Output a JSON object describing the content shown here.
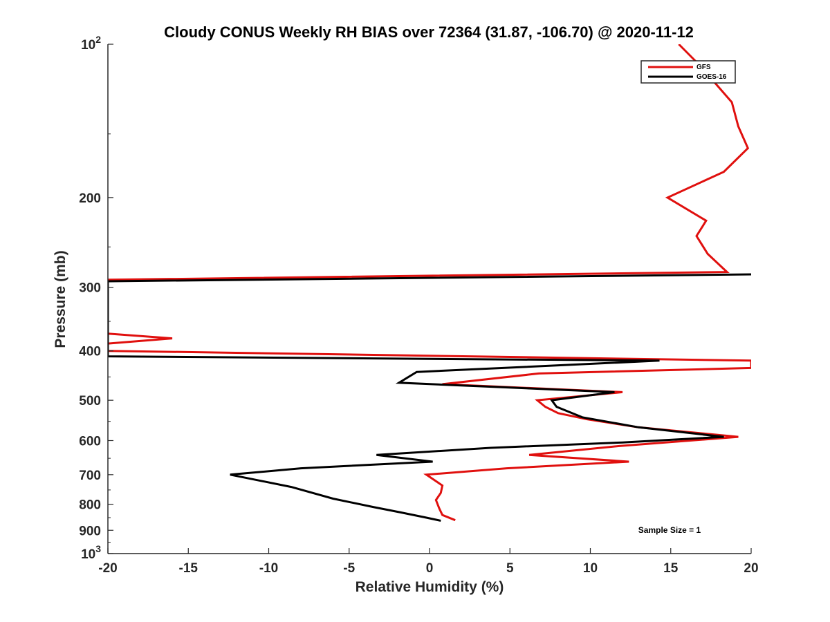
{
  "chart_data": {
    "type": "line",
    "title": "Cloudy CONUS Weekly RH BIAS over 72364 (31.87, -106.70) @ 2020-11-12",
    "xlabel": "Relative Humidity (%)",
    "ylabel": "Pressure (mb)",
    "xlim": [
      -20,
      20
    ],
    "ylim": [
      100,
      1000
    ],
    "y_scale": "log",
    "y_reversed": true,
    "x_ticks": [
      "-20",
      "-15",
      "-10",
      "-5",
      "0",
      "5",
      "10",
      "15",
      "20"
    ],
    "y_ticks": [
      {
        "value": 100,
        "base": "10",
        "exp": "2"
      },
      {
        "value": 200,
        "label": "200"
      },
      {
        "value": 300,
        "label": "300"
      },
      {
        "value": 400,
        "label": "400"
      },
      {
        "value": 500,
        "label": "500"
      },
      {
        "value": 600,
        "label": "600"
      },
      {
        "value": 700,
        "label": "700"
      },
      {
        "value": 800,
        "label": "800"
      },
      {
        "value": 900,
        "label": "900"
      },
      {
        "value": 1000,
        "base": "10",
        "exp": "3"
      }
    ],
    "legend_position": "top-right",
    "grid": false,
    "annotation": "Sample Size = 1",
    "series": [
      {
        "name": "GFS",
        "color": "#e0100e",
        "points": [
          [
            15.5,
            100
          ],
          [
            16.8,
            110
          ],
          [
            18.8,
            130
          ],
          [
            19.2,
            145
          ],
          [
            19.8,
            160
          ],
          [
            18.3,
            178
          ],
          [
            14.8,
            200
          ],
          [
            17.2,
            222
          ],
          [
            16.6,
            238
          ],
          [
            17.3,
            258
          ],
          [
            18.5,
            280
          ],
          [
            -20,
            290
          ],
          [
            -20,
            370
          ],
          [
            -16,
            378
          ],
          [
            -20,
            387
          ],
          [
            -20,
            400
          ],
          [
            20,
            418
          ],
          [
            20,
            432
          ],
          [
            6.8,
            443
          ],
          [
            0.8,
            465
          ],
          [
            12.0,
            482
          ],
          [
            6.7,
            500
          ],
          [
            7.2,
            515
          ],
          [
            8.0,
            530
          ],
          [
            9.8,
            545
          ],
          [
            13.0,
            565
          ],
          [
            19.2,
            590
          ],
          [
            11.8,
            615
          ],
          [
            6.2,
            640
          ],
          [
            12.4,
            660
          ],
          [
            4.8,
            680
          ],
          [
            -0.2,
            700
          ],
          [
            0.8,
            735
          ],
          [
            0.7,
            760
          ],
          [
            0.4,
            785
          ],
          [
            0.6,
            815
          ],
          [
            0.8,
            840
          ],
          [
            1.6,
            860
          ]
        ]
      },
      {
        "name": "GOES-16",
        "color": "#000000",
        "points": [
          [
            20,
            283
          ],
          [
            -20,
            292
          ],
          [
            -20,
            410
          ],
          [
            14.3,
            418
          ],
          [
            -0.8,
            440
          ],
          [
            -1.9,
            462
          ],
          [
            11.5,
            482
          ],
          [
            7.6,
            500
          ],
          [
            7.9,
            515
          ],
          [
            9.5,
            540
          ],
          [
            13.0,
            565
          ],
          [
            18.3,
            590
          ],
          [
            12.0,
            605
          ],
          [
            3.8,
            620
          ],
          [
            -3.3,
            640
          ],
          [
            0.2,
            660
          ],
          [
            -8.0,
            680
          ],
          [
            -12.4,
            700
          ],
          [
            -8.6,
            740
          ],
          [
            -6.0,
            780
          ],
          [
            -3.5,
            810
          ],
          [
            -1.8,
            830
          ],
          [
            -0.2,
            850
          ],
          [
            0.7,
            862
          ]
        ]
      }
    ]
  }
}
